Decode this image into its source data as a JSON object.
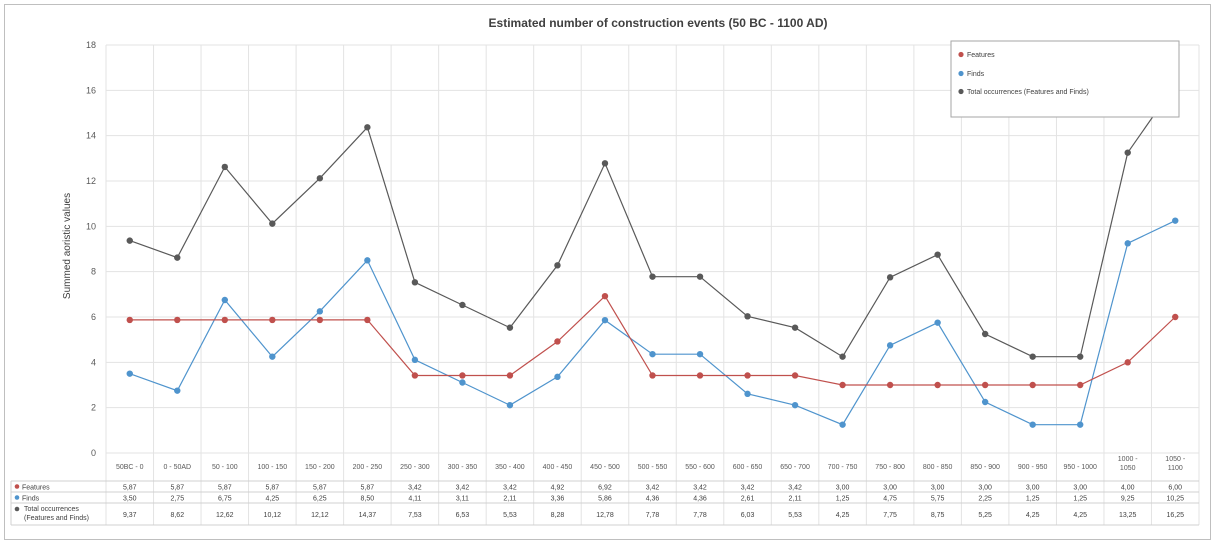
{
  "chart_data": {
    "type": "line",
    "title": "Estimated number of construction events  (50 BC - 1100 AD)",
    "ylabel": "Summed aoristic values",
    "xlabel": "",
    "ylim": [
      0,
      18
    ],
    "yticks": [
      0,
      2,
      4,
      6,
      8,
      10,
      12,
      14,
      16,
      18
    ],
    "grid": true,
    "legend_position": "top-right",
    "categories": [
      [
        "50BC - 0"
      ],
      [
        "0 - 50AD"
      ],
      [
        "50 - 100"
      ],
      [
        "100 - 150"
      ],
      [
        "150 - 200"
      ],
      [
        "200 - 250"
      ],
      [
        "250 - 300"
      ],
      [
        "300 - 350"
      ],
      [
        "350 - 400"
      ],
      [
        "400 - 450"
      ],
      [
        "450 - 500"
      ],
      [
        "500 - 550"
      ],
      [
        "550 - 600"
      ],
      [
        "600 - 650"
      ],
      [
        "650 - 700"
      ],
      [
        "700 - 750"
      ],
      [
        "750 - 800"
      ],
      [
        "800 - 850"
      ],
      [
        "850 - 900"
      ],
      [
        "900 - 950"
      ],
      [
        "950 - 1000"
      ],
      [
        "1000 -",
        "1050"
      ],
      [
        "1050 -",
        "1100"
      ]
    ],
    "series": [
      {
        "name": "Features",
        "table_label": [
          "Features"
        ],
        "color": "#c0504d",
        "values": [
          5.87,
          5.87,
          5.87,
          5.87,
          5.87,
          5.87,
          3.42,
          3.42,
          3.42,
          4.92,
          6.92,
          3.42,
          3.42,
          3.42,
          3.42,
          3.0,
          3.0,
          3.0,
          3.0,
          3.0,
          3.0,
          4.0,
          6.0
        ],
        "labels": [
          "5,87",
          "5,87",
          "5,87",
          "5,87",
          "5,87",
          "5,87",
          "3,42",
          "3,42",
          "3,42",
          "4,92",
          "6,92",
          "3,42",
          "3,42",
          "3,42",
          "3,42",
          "3,00",
          "3,00",
          "3,00",
          "3,00",
          "3,00",
          "3,00",
          "4,00",
          "6,00"
        ]
      },
      {
        "name": "Finds",
        "table_label": [
          "Finds"
        ],
        "color": "#4f94cd",
        "values": [
          3.5,
          2.75,
          6.75,
          4.25,
          6.25,
          8.5,
          4.11,
          3.11,
          2.11,
          3.36,
          5.86,
          4.36,
          4.36,
          2.61,
          2.11,
          1.25,
          4.75,
          5.75,
          2.25,
          1.25,
          1.25,
          9.25,
          10.25
        ],
        "labels": [
          "3,50",
          "2,75",
          "6,75",
          "4,25",
          "6,25",
          "8,50",
          "4,11",
          "3,11",
          "2,11",
          "3,36",
          "5,86",
          "4,36",
          "4,36",
          "2,61",
          "2,11",
          "1,25",
          "4,75",
          "5,75",
          "2,25",
          "1,25",
          "1,25",
          "9,25",
          "10,25"
        ]
      },
      {
        "name": "Total occurrences (Features and Finds)",
        "table_label": [
          "Total occurrences",
          "(Features and Finds)"
        ],
        "color": "#595959",
        "values": [
          9.37,
          8.62,
          12.62,
          10.12,
          12.12,
          14.37,
          7.53,
          6.53,
          5.53,
          8.28,
          12.78,
          7.78,
          7.78,
          6.03,
          5.53,
          4.25,
          7.75,
          8.75,
          5.25,
          4.25,
          4.25,
          13.25,
          16.25
        ],
        "labels": [
          "9,37",
          "8,62",
          "12,62",
          "10,12",
          "12,12",
          "14,37",
          "7,53",
          "6,53",
          "5,53",
          "8,28",
          "12,78",
          "7,78",
          "7,78",
          "6,03",
          "5,53",
          "4,25",
          "7,75",
          "8,75",
          "5,25",
          "4,25",
          "4,25",
          "13,25",
          "16,25"
        ]
      }
    ]
  }
}
